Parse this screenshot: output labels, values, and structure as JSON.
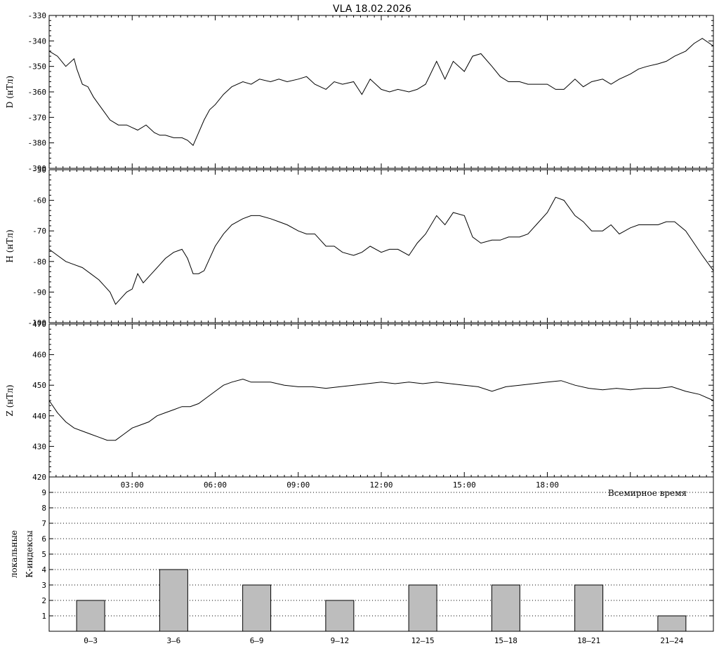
{
  "title": "VLA   18.02.2026",
  "chart_data": [
    {
      "type": "line",
      "ylabel": "D (нТл)",
      "ylim": [
        -390,
        -330
      ],
      "yticks": [
        -330,
        -340,
        -350,
        -360,
        -370,
        -380,
        -390
      ],
      "x_unit": "hours UT",
      "xlim": [
        0,
        24
      ],
      "series": [
        {
          "x": [
            0,
            0.3,
            0.6,
            0.9,
            1.0,
            1.2,
            1.4,
            1.6,
            1.8,
            2.0,
            2.2,
            2.5,
            2.8,
            3.0,
            3.2,
            3.5,
            3.8,
            4.0,
            4.2,
            4.5,
            4.8,
            5.0,
            5.2,
            5.4,
            5.6,
            5.8,
            6.0,
            6.3,
            6.6,
            7.0,
            7.3,
            7.6,
            8.0,
            8.3,
            8.6,
            9.0,
            9.3,
            9.6,
            10.0,
            10.3,
            10.6,
            11.0,
            11.3,
            11.6,
            12.0,
            12.3,
            12.6,
            13.0,
            13.3,
            13.6,
            14.0,
            14.3,
            14.6,
            15.0,
            15.3,
            15.6,
            16.0,
            16.3,
            16.6,
            17.0,
            17.3,
            17.6,
            18.0,
            18.3,
            18.6,
            19.0,
            19.3,
            19.6,
            20.0,
            20.3,
            20.6,
            21.0,
            21.3,
            21.6,
            22.0,
            22.3,
            22.6,
            23.0,
            23.3,
            23.6,
            24.0
          ],
          "y": [
            -344,
            -346,
            -350,
            -347,
            -351,
            -357,
            -358,
            -362,
            -365,
            -368,
            -371,
            -373,
            -373,
            -374,
            -375,
            -373,
            -376,
            -377,
            -377,
            -378,
            -378,
            -379,
            -381,
            -376,
            -371,
            -367,
            -365,
            -361,
            -358,
            -356,
            -357,
            -355,
            -356,
            -355,
            -356,
            -355,
            -354,
            -357,
            -359,
            -356,
            -357,
            -356,
            -361,
            -355,
            -359,
            -360,
            -359,
            -360,
            -359,
            -357,
            -348,
            -355,
            -348,
            -352,
            -346,
            -345,
            -350,
            -354,
            -356,
            -356,
            -357,
            -357,
            -357,
            -359,
            -359,
            -355,
            -358,
            -356,
            -355,
            -357,
            -355,
            -353,
            -351,
            -350,
            -349,
            -348,
            -346,
            -344,
            -341,
            -339,
            -342
          ]
        }
      ]
    },
    {
      "type": "line",
      "ylabel": "H (нТл)",
      "ylim": [
        -100,
        -50
      ],
      "yticks": [
        -50,
        -60,
        -70,
        -80,
        -90,
        -100
      ],
      "x_unit": "hours UT",
      "xlim": [
        0,
        24
      ],
      "series": [
        {
          "x": [
            0,
            0.3,
            0.6,
            0.9,
            1.2,
            1.5,
            1.8,
            2.0,
            2.2,
            2.4,
            2.6,
            2.8,
            3.0,
            3.2,
            3.4,
            3.6,
            3.8,
            4.0,
            4.2,
            4.5,
            4.8,
            5.0,
            5.2,
            5.4,
            5.6,
            5.8,
            6.0,
            6.3,
            6.6,
            7.0,
            7.3,
            7.6,
            8.0,
            8.3,
            8.6,
            9.0,
            9.3,
            9.6,
            10.0,
            10.3,
            10.6,
            11.0,
            11.3,
            11.6,
            12.0,
            12.3,
            12.6,
            13.0,
            13.3,
            13.6,
            14.0,
            14.3,
            14.6,
            15.0,
            15.3,
            15.6,
            16.0,
            16.3,
            16.6,
            17.0,
            17.3,
            17.6,
            18.0,
            18.3,
            18.6,
            19.0,
            19.3,
            19.6,
            20.0,
            20.3,
            20.6,
            21.0,
            21.3,
            21.6,
            22.0,
            22.3,
            22.6,
            23.0,
            23.3,
            23.6,
            24.0
          ],
          "y": [
            -76,
            -78,
            -80,
            -81,
            -82,
            -84,
            -86,
            -88,
            -90,
            -94,
            -92,
            -90,
            -89,
            -84,
            -87,
            -85,
            -83,
            -81,
            -79,
            -77,
            -76,
            -79,
            -84,
            -84,
            -83,
            -79,
            -75,
            -71,
            -68,
            -66,
            -65,
            -65,
            -66,
            -67,
            -68,
            -70,
            -71,
            -71,
            -75,
            -75,
            -77,
            -78,
            -77,
            -75,
            -77,
            -76,
            -76,
            -78,
            -74,
            -71,
            -65,
            -68,
            -64,
            -65,
            -72,
            -74,
            -73,
            -73,
            -72,
            -72,
            -71,
            -68,
            -64,
            -59,
            -60,
            -65,
            -67,
            -70,
            -70,
            -68,
            -71,
            -69,
            -68,
            -68,
            -68,
            -67,
            -67,
            -70,
            -74,
            -78,
            -83
          ]
        }
      ]
    },
    {
      "type": "line",
      "ylabel": "Z (нТл)",
      "ylim": [
        420,
        470
      ],
      "yticks": [
        470,
        460,
        450,
        440,
        430,
        420
      ],
      "x_unit": "hours UT",
      "xlim": [
        0,
        24
      ],
      "series": [
        {
          "x": [
            0,
            0.3,
            0.6,
            0.9,
            1.2,
            1.5,
            1.8,
            2.1,
            2.4,
            2.7,
            3.0,
            3.3,
            3.6,
            3.9,
            4.2,
            4.5,
            4.8,
            5.1,
            5.4,
            5.7,
            6.0,
            6.3,
            6.6,
            7.0,
            7.3,
            7.6,
            8.0,
            8.5,
            9.0,
            9.5,
            10.0,
            10.5,
            11.0,
            11.5,
            12.0,
            12.5,
            13.0,
            13.5,
            14.0,
            14.5,
            15.0,
            15.5,
            16.0,
            16.5,
            17.0,
            17.5,
            18.0,
            18.5,
            19.0,
            19.5,
            20.0,
            20.5,
            21.0,
            21.5,
            22.0,
            22.5,
            23.0,
            23.5,
            24.0
          ],
          "y": [
            445,
            441,
            438,
            436,
            435,
            434,
            433,
            432,
            432,
            434,
            436,
            437,
            438,
            440,
            441,
            442,
            443,
            443,
            444,
            446,
            448,
            450,
            451,
            452,
            451,
            451,
            451,
            450,
            449.5,
            449.5,
            449,
            449.5,
            450,
            450.5,
            451,
            450.5,
            451,
            450.5,
            451,
            450.5,
            450,
            449.5,
            448,
            449.5,
            450,
            450.5,
            451,
            451.5,
            450,
            449,
            448.5,
            449,
            448.5,
            449,
            449,
            449.5,
            448,
            447,
            445
          ]
        }
      ]
    },
    {
      "type": "bar",
      "ylabel": "локальные К-индексы",
      "xlabel": "Всемирное время",
      "categories": [
        "0–3",
        "3–6",
        "6–9",
        "9–12",
        "12–15",
        "15–18",
        "18–21",
        "21–24"
      ],
      "values": [
        2,
        4,
        3,
        2,
        3,
        3,
        3,
        1
      ],
      "ylim": [
        0,
        10
      ],
      "yticks": [
        1,
        2,
        3,
        4,
        5,
        6,
        7,
        8,
        9
      ],
      "xticks": [
        "03:00",
        "06:00",
        "09:00",
        "12:00",
        "15:00",
        "18:00"
      ],
      "grid": "dotted horizontal"
    }
  ]
}
